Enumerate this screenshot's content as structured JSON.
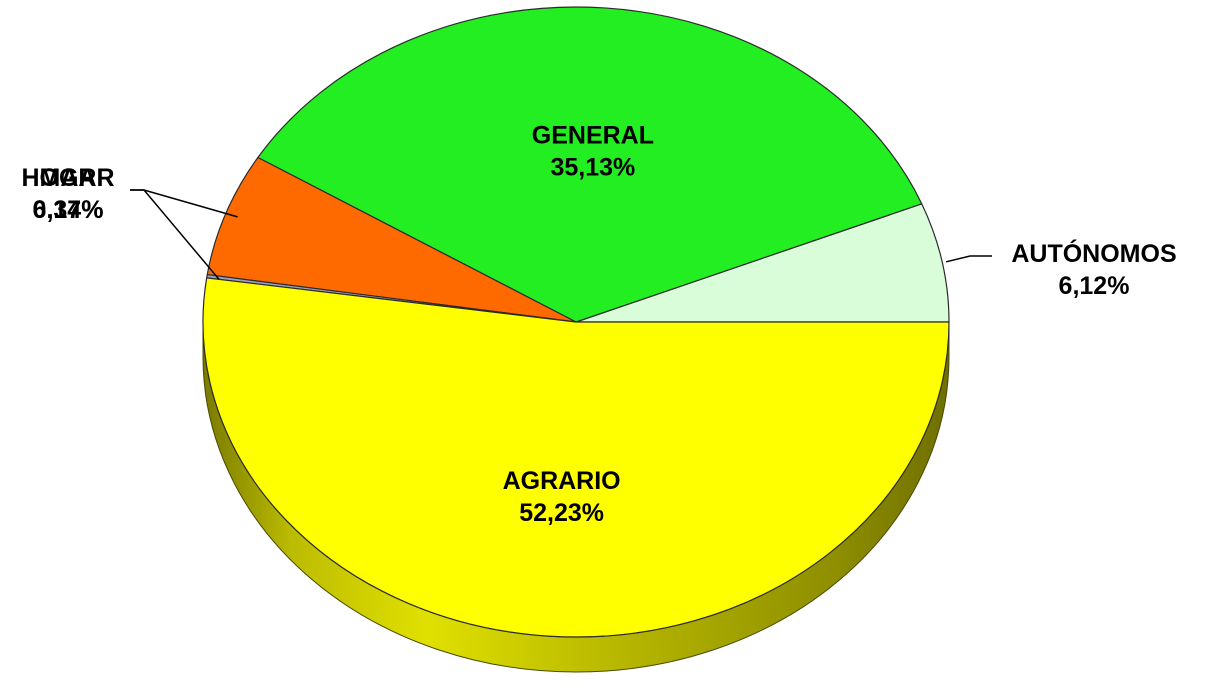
{
  "chart_data": {
    "type": "pie",
    "style": "3d-tilted",
    "start_angle_deg": 0,
    "direction": "counterclockwise",
    "slices": [
      {
        "label": "AUTÓNOMOS",
        "value": 6.12,
        "value_label": "6,12%",
        "color": "#d9fcd9",
        "label_position": "outside-right"
      },
      {
        "label": "GENERAL",
        "value": 35.13,
        "value_label": "35,13%",
        "color": "#22ee22",
        "label_position": "inside"
      },
      {
        "label": "HOGAR",
        "value": 6.34,
        "value_label": "6,34%",
        "color": "#ff6a00",
        "label_position": "outside-left"
      },
      {
        "label": "MAR",
        "value": 0.17,
        "value_label": "0,17%",
        "color": "#9aa0b8",
        "label_position": "outside-left"
      },
      {
        "label": "AGRARIO",
        "value": 52.23,
        "value_label": "52,23%",
        "color": "#ffff00",
        "label_position": "inside"
      }
    ],
    "side_color": "#8f8f00",
    "title": "",
    "legend": "none"
  }
}
